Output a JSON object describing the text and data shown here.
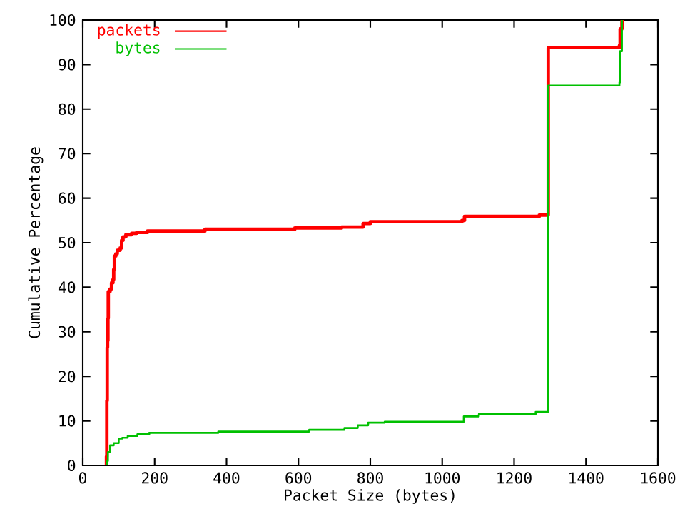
{
  "chart_data": {
    "type": "step",
    "xlabel": "Packet Size (bytes)",
    "ylabel": "Cumulative Percentage",
    "xlim": [
      0,
      1600
    ],
    "ylim": [
      0,
      100
    ],
    "xticks": [
      0,
      200,
      400,
      600,
      800,
      1000,
      1200,
      1400,
      1600
    ],
    "yticks": [
      0,
      10,
      20,
      30,
      40,
      50,
      60,
      70,
      80,
      90,
      100
    ],
    "legend": "top left",
    "grid": false,
    "series": [
      {
        "name": "packets",
        "color": "#ff0000",
        "x": [
          64,
          66,
          67,
          68,
          69,
          70,
          71,
          76,
          80,
          84,
          86,
          88,
          92,
          96,
          104,
          108,
          112,
          120,
          136,
          150,
          180,
          340,
          590,
          720,
          780,
          800,
          1055,
          1062,
          1270,
          1295,
          1493,
          1495,
          1500
        ],
        "values": [
          0,
          2,
          14.5,
          26.5,
          28,
          33,
          39,
          39.6,
          41,
          41.7,
          44,
          47,
          47.5,
          48.3,
          48.8,
          50.5,
          51.3,
          51.8,
          52.1,
          52.3,
          52.6,
          53,
          53.3,
          53.5,
          54.3,
          54.7,
          55,
          55.9,
          56.2,
          93.8,
          94.3,
          98,
          100
        ]
      },
      {
        "name": "bytes",
        "color": "#00c000",
        "x": [
          64,
          68,
          70,
          76,
          86,
          100,
          110,
          125,
          152,
          185,
          377,
          630,
          728,
          765,
          794,
          840,
          1060,
          1102,
          1260,
          1295,
          1493,
          1495,
          1500
        ],
        "values": [
          0,
          1,
          3,
          4.5,
          5,
          6,
          6.2,
          6.6,
          7,
          7.3,
          7.6,
          8,
          8.4,
          9,
          9.6,
          9.8,
          11,
          11.5,
          12,
          85.3,
          86,
          93,
          100
        ]
      }
    ]
  }
}
